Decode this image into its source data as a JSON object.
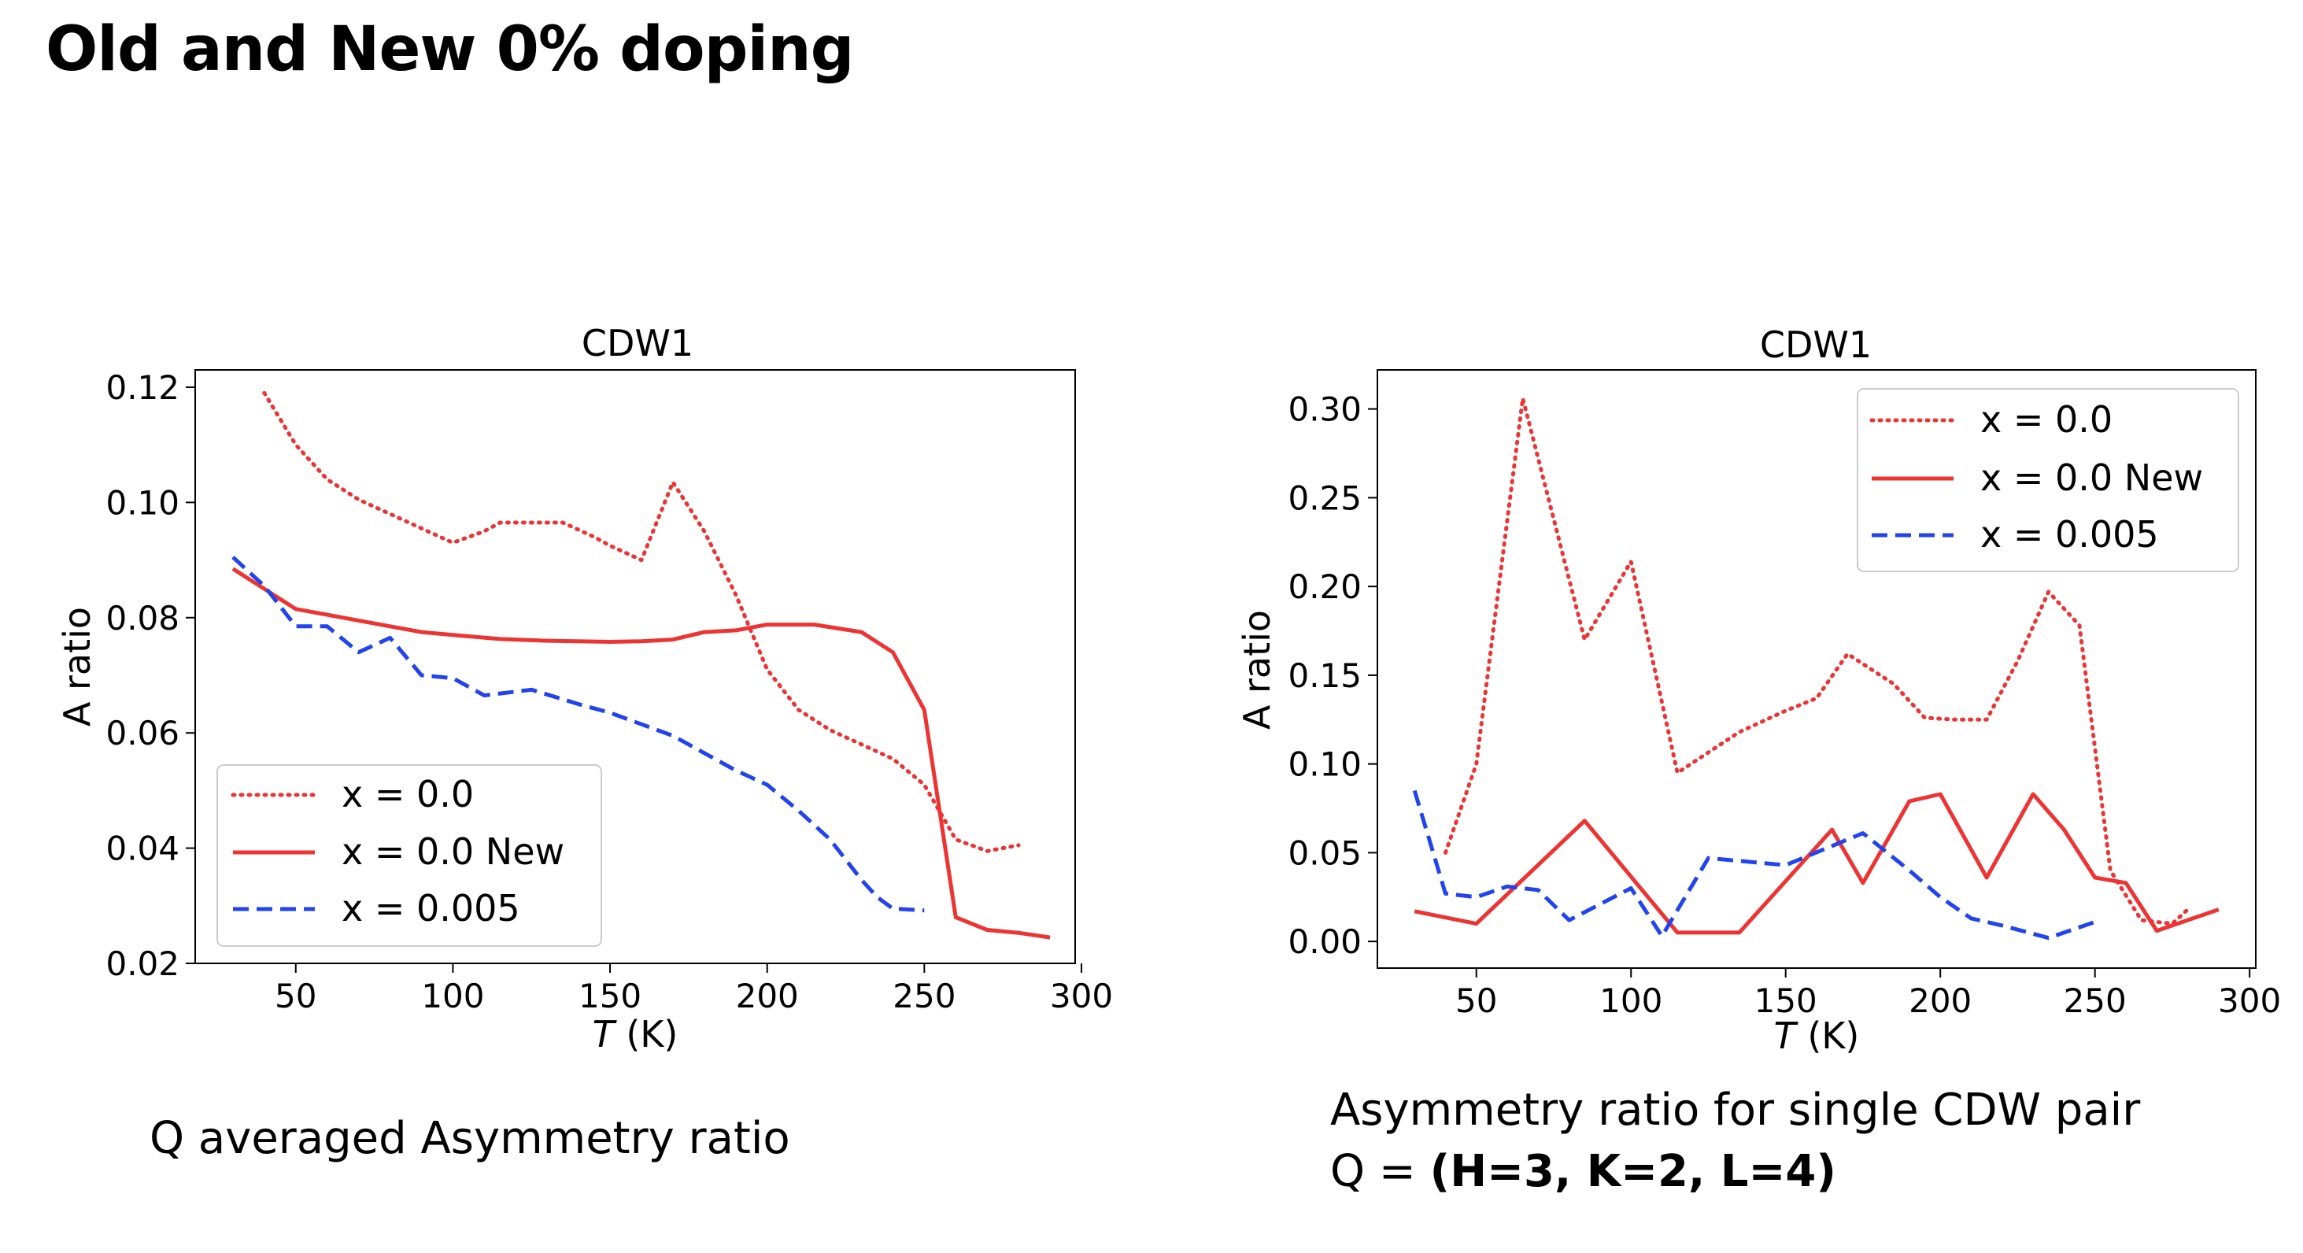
{
  "slide": {
    "title": "Old and New 0% doping",
    "caption_left": "Q averaged Asymmetry ratio",
    "caption_right_line1": "Asymmetry ratio for single CDW pair",
    "caption_right_q_prefix": "Q = ",
    "caption_right_q_value": "(H=3, K=2, L=4)"
  },
  "chart_data": [
    {
      "type": "line",
      "title": "CDW1",
      "xlabel_italic": "T",
      "xlabel_rest": " (K)",
      "ylabel": "A ratio",
      "xlim": [
        18,
        298
      ],
      "ylim": [
        0.02,
        0.123
      ],
      "xticks": [
        50,
        100,
        150,
        200,
        250,
        300
      ],
      "yticks": [
        0.02,
        0.04,
        0.06,
        0.08,
        0.1,
        0.12
      ],
      "ytick_labels": [
        "0.02",
        "0.04",
        "0.06",
        "0.08",
        "0.10",
        "0.12"
      ],
      "grid": false,
      "legend_position": "lower-left",
      "series": [
        {
          "name": "x = 0.0",
          "color": "#ee3333",
          "style": "dotted",
          "x": [
            40,
            50,
            60,
            70,
            80,
            90,
            100,
            110,
            115,
            125,
            135,
            145,
            150,
            160,
            170,
            180,
            190,
            200,
            210,
            220,
            230,
            240,
            250,
            260,
            270,
            280
          ],
          "y": [
            0.119,
            0.11,
            0.104,
            0.1005,
            0.098,
            0.0955,
            0.093,
            0.095,
            0.0965,
            0.0965,
            0.0965,
            0.094,
            0.0925,
            0.09,
            0.1035,
            0.095,
            0.084,
            0.071,
            0.064,
            0.0605,
            0.058,
            0.0555,
            0.051,
            0.0415,
            0.0395,
            0.0405
          ]
        },
        {
          "name": "x = 0.0 New",
          "color": "#ee3333",
          "style": "solid",
          "x": [
            30,
            40,
            50,
            60,
            70,
            80,
            90,
            100,
            115,
            130,
            150,
            160,
            170,
            180,
            190,
            200,
            215,
            230,
            240,
            250,
            260,
            270,
            280,
            290
          ],
          "y": [
            0.0885,
            0.085,
            0.0815,
            0.0805,
            0.0795,
            0.0785,
            0.0775,
            0.077,
            0.0763,
            0.076,
            0.0758,
            0.0759,
            0.0762,
            0.0775,
            0.0778,
            0.0788,
            0.0788,
            0.0775,
            0.074,
            0.064,
            0.028,
            0.0258,
            0.0253,
            0.0245
          ]
        },
        {
          "name": "x = 0.005",
          "color": "#2244ee",
          "style": "dashed",
          "x": [
            30,
            40,
            50,
            60,
            70,
            80,
            90,
            100,
            110,
            125,
            140,
            150,
            160,
            170,
            180,
            190,
            200,
            210,
            220,
            230,
            235,
            240,
            250
          ],
          "y": [
            0.0905,
            0.0855,
            0.0785,
            0.0785,
            0.074,
            0.0765,
            0.07,
            0.0695,
            0.0665,
            0.0675,
            0.065,
            0.0635,
            0.0615,
            0.0595,
            0.0565,
            0.0535,
            0.051,
            0.0465,
            0.0415,
            0.0345,
            0.0315,
            0.0295,
            0.0292
          ]
        }
      ]
    },
    {
      "type": "line",
      "title": "CDW1",
      "xlabel_italic": "T",
      "xlabel_rest": " (K)",
      "ylabel": "A ratio",
      "xlim": [
        18,
        302
      ],
      "ylim": [
        -0.015,
        0.322
      ],
      "xticks": [
        50,
        100,
        150,
        200,
        250,
        300
      ],
      "yticks": [
        0.0,
        0.05,
        0.1,
        0.15,
        0.2,
        0.25,
        0.3
      ],
      "ytick_labels": [
        "0.00",
        "0.05",
        "0.10",
        "0.15",
        "0.20",
        "0.25",
        "0.30"
      ],
      "grid": false,
      "legend_position": "upper-right",
      "series": [
        {
          "name": "x = 0.0",
          "color": "#ee3333",
          "style": "dotted",
          "x": [
            40,
            50,
            65,
            85,
            100,
            115,
            135,
            150,
            160,
            170,
            185,
            195,
            205,
            215,
            225,
            235,
            245,
            255,
            265,
            275,
            280
          ],
          "y": [
            0.05,
            0.1,
            0.306,
            0.17,
            0.214,
            0.095,
            0.118,
            0.13,
            0.137,
            0.162,
            0.145,
            0.126,
            0.125,
            0.125,
            0.158,
            0.197,
            0.178,
            0.04,
            0.012,
            0.01,
            0.018
          ]
        },
        {
          "name": "x = 0.0 New",
          "color": "#ee3333",
          "style": "solid",
          "x": [
            30,
            50,
            85,
            115,
            135,
            165,
            175,
            190,
            200,
            215,
            230,
            240,
            250,
            260,
            270,
            290
          ],
          "y": [
            0.017,
            0.01,
            0.068,
            0.005,
            0.005,
            0.063,
            0.033,
            0.079,
            0.083,
            0.036,
            0.083,
            0.063,
            0.036,
            0.033,
            0.006,
            0.018
          ]
        },
        {
          "name": "x = 0.005",
          "color": "#2244ee",
          "style": "dashed",
          "x": [
            30,
            40,
            50,
            60,
            70,
            80,
            100,
            110,
            125,
            150,
            175,
            190,
            200,
            210,
            220,
            235,
            250
          ],
          "y": [
            0.085,
            0.027,
            0.025,
            0.031,
            0.029,
            0.012,
            0.03,
            0.003,
            0.047,
            0.043,
            0.061,
            0.04,
            0.025,
            0.013,
            0.009,
            0.002,
            0.011
          ]
        }
      ]
    }
  ]
}
